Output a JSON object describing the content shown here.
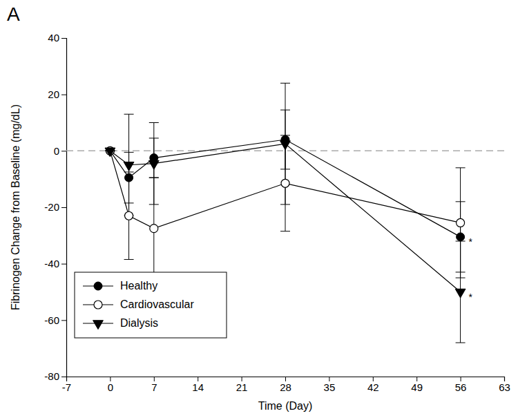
{
  "chart_data": {
    "type": "line",
    "title": "A",
    "x_label": "Time (Day)",
    "y_label": "Fibrinogen Change from Baseline (mg/dL)",
    "x": [
      0,
      3,
      7,
      28,
      56
    ],
    "xlim": [
      -7,
      63
    ],
    "xticks": [
      -7,
      0,
      7,
      14,
      21,
      28,
      35,
      42,
      49,
      56,
      63
    ],
    "ylim": [
      -80,
      40
    ],
    "yticks": [
      -80,
      -60,
      -40,
      -20,
      0,
      20,
      40
    ],
    "grid": false,
    "legend": "lower left",
    "reference_line": {
      "y": 0,
      "color": "#aaaaaa",
      "line_style": "dashed"
    },
    "series": [
      {
        "name": "Healthy",
        "color": "#000000",
        "marker": "circle",
        "line_style": "solid",
        "values": [
          0,
          -9.5,
          -2.5,
          4,
          -30.5
        ],
        "errors": [
          0,
          9,
          7,
          10.5,
          12.5
        ]
      },
      {
        "name": "Cardiovascular",
        "color": "#000000",
        "marker": "circle-open",
        "line_style": "solid",
        "values": [
          0,
          -23,
          -27.5,
          -11.5,
          -25.5
        ],
        "errors": [
          0,
          15.5,
          18,
          17,
          19.5
        ]
      },
      {
        "name": "Dialysis",
        "color": "#000000",
        "marker": "triangle-down",
        "line_style": "solid",
        "values": [
          0,
          -5,
          -4.5,
          2.5,
          -50
        ],
        "errors": [
          0,
          18,
          14.5,
          21.5,
          18
        ]
      }
    ],
    "annotations": [
      {
        "text": "*",
        "x": 56,
        "y": -30.5
      },
      {
        "text": "*",
        "x": 56,
        "y": -50
      }
    ]
  }
}
